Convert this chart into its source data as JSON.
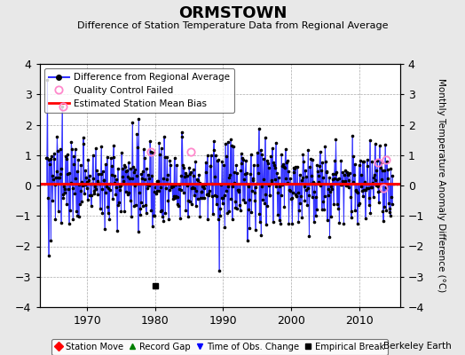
{
  "title": "ORMSTOWN",
  "subtitle": "Difference of Station Temperature Data from Regional Average",
  "ylabel_right": "Monthly Temperature Anomaly Difference (°C)",
  "xlim": [
    1963.0,
    2016.0
  ],
  "ylim": [
    -4,
    4
  ],
  "yticks": [
    -4,
    -3,
    -2,
    -1,
    0,
    1,
    2,
    3,
    4
  ],
  "xticks": [
    1970,
    1980,
    1990,
    2000,
    2010
  ],
  "bias_value": 0.05,
  "background_color": "#e8e8e8",
  "plot_background": "#ffffff",
  "line_color": "#3333ff",
  "dot_color": "#000000",
  "bias_color": "#ff0000",
  "qc_color": "#ff88cc",
  "empirical_break_x": 1980.08,
  "empirical_break_y": -3.3,
  "gap_x": 1980.08,
  "berkeley_earth_text": "Berkeley Earth",
  "seed": 137,
  "qc_failed_times": [
    1966.42,
    1979.33,
    1985.25,
    2012.75,
    2013.58,
    2014.0
  ],
  "qc_failed_vals": [
    2.6,
    1.1,
    1.1,
    0.75,
    -0.1,
    0.85
  ]
}
